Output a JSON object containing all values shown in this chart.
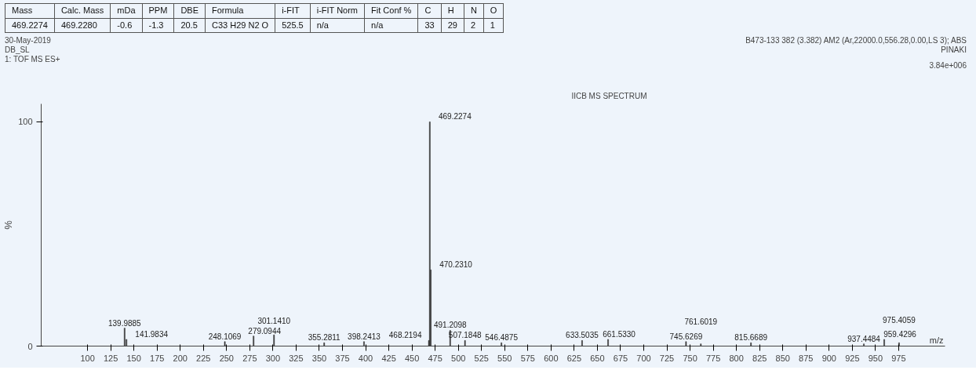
{
  "chart_data": {
    "type": "bar",
    "title": "IICB MS SPECTRUM",
    "xlabel": "m/z",
    "ylabel": "%",
    "x": [
      139.9885,
      141.9834,
      248.1069,
      279.0944,
      301.141,
      355.2811,
      398.2413,
      468.2194,
      469.2274,
      470.231,
      491.2098,
      507.1848,
      546.4875,
      633.5035,
      661.533,
      745.6269,
      761.6019,
      815.6689,
      937.4484,
      959.4296,
      975.4059
    ],
    "values": [
      8,
      3,
      2,
      4.5,
      5,
      1.5,
      2,
      2.5,
      100,
      34,
      7,
      2.5,
      1.5,
      2.5,
      3,
      2,
      1,
      1.5,
      1,
      3,
      1.5
    ],
    "color": "#333333",
    "xlim": [
      50,
      1025
    ],
    "ylim": [
      0,
      108
    ],
    "xticks": [
      100,
      125,
      150,
      175,
      200,
      225,
      250,
      275,
      300,
      325,
      350,
      375,
      400,
      425,
      450,
      475,
      500,
      525,
      550,
      575,
      600,
      625,
      650,
      675,
      700,
      725,
      750,
      775,
      800,
      825,
      850,
      875,
      900,
      925,
      950,
      975
    ],
    "yticks": [
      0,
      100
    ],
    "grid": false,
    "annotations": [
      "Mass",
      "Calc. Mass",
      "mDa",
      "PPM",
      "DBE",
      "Formula",
      "i-FIT",
      "i-FIT Norm",
      "Fit Conf %",
      "C",
      "H",
      "N",
      "O",
      "469.2274",
      "469.2280",
      "-0.6",
      "-1.3",
      "20.5",
      "C33  H29  N2  O",
      "525.5",
      "n/a",
      "n/a",
      "33",
      "29",
      "2",
      "1",
      "30-May-2019",
      "DB_SL",
      "1: TOF MS ES+",
      "B473-133 382 (3.382) AM2 (Ar,22000.0,556.28,0.00,LS 3); ABS",
      "PINAKI",
      "3.84e+006",
      {
        "text": "139.9885",
        "x": 139.9885,
        "y": 8
      },
      {
        "text": "141.9834",
        "x": 141.9834,
        "y": 3
      },
      {
        "text": "248.1069",
        "x": 248.1069,
        "y": 2
      },
      {
        "text": "279.0944",
        "x": 279.0944,
        "y": 4.5
      },
      {
        "text": "301.1410",
        "x": 301.141,
        "y": 5
      },
      {
        "text": "355.2811",
        "x": 355.2811,
        "y": 1.5
      },
      {
        "text": "398.2413",
        "x": 398.2413,
        "y": 2
      },
      {
        "text": "468.2194",
        "x": 468.2194,
        "y": 2.5
      },
      {
        "text": "469.2274",
        "x": 469.2274,
        "y": 100
      },
      {
        "text": "470.2310",
        "x": 470.231,
        "y": 34
      },
      {
        "text": "491.2098",
        "x": 491.2098,
        "y": 7
      },
      {
        "text": "507.1848",
        "x": 507.1848,
        "y": 2.5
      },
      {
        "text": "546.4875",
        "x": 546.4875,
        "y": 1.5
      },
      {
        "text": "633.5035",
        "x": 633.5035,
        "y": 2.5
      },
      {
        "text": "661.5330",
        "x": 661.533,
        "y": 3
      },
      {
        "text": "745.6269",
        "x": 745.6269,
        "y": 2
      },
      {
        "text": "761.6019",
        "x": 761.6019,
        "y": 1
      },
      {
        "text": "815.6689",
        "x": 815.6689,
        "y": 1.5
      },
      {
        "text": "937.4484",
        "x": 937.4484,
        "y": 1
      },
      {
        "text": "959.4296",
        "x": 959.4296,
        "y": 3
      },
      {
        "text": "975.4059",
        "x": 975.4059,
        "y": 1.5
      }
    ]
  }
}
